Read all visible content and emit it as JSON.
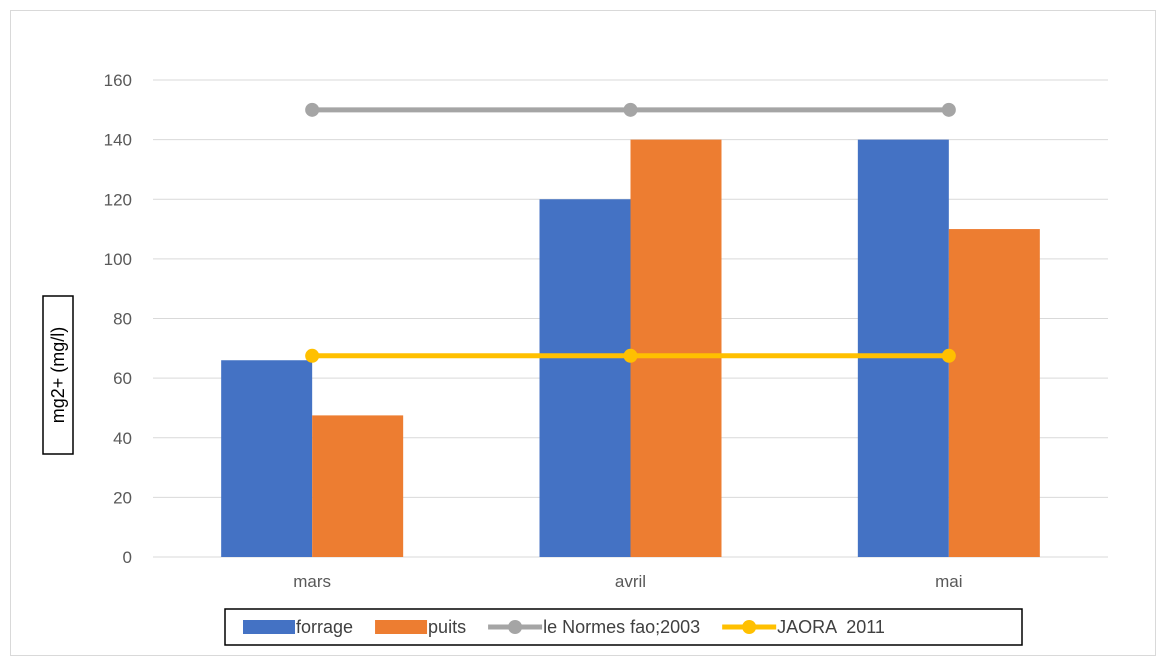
{
  "chart_data": {
    "type": "bar",
    "categories": [
      "mars",
      "avril",
      "mai"
    ],
    "series": [
      {
        "name": "forrage",
        "kind": "bar",
        "color": "#4472C4",
        "values": [
          66,
          120,
          140
        ]
      },
      {
        "name": "puits",
        "kind": "bar",
        "color": "#ED7D31",
        "values": [
          47.5,
          140,
          110
        ]
      },
      {
        "name": "le Normes fao;2003",
        "kind": "line",
        "color": "#A5A5A5",
        "values": [
          150,
          150,
          150
        ]
      },
      {
        "name": "JAORA  2011",
        "kind": "line",
        "color": "#FFC000",
        "values": [
          67.5,
          67.5,
          67.5
        ]
      }
    ],
    "ylabel": "mg2+ (mg/l)",
    "ylim": [
      0,
      160
    ],
    "yticks": [
      0,
      20,
      40,
      60,
      80,
      100,
      120,
      140,
      160
    ],
    "grid": true,
    "legend_position": "bottom"
  }
}
